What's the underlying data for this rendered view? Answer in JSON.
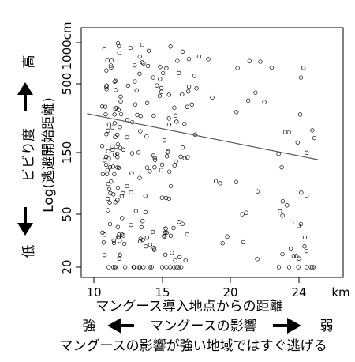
{
  "chart_data": {
    "type": "scatter",
    "x_ticks": [
      "10",
      "15",
      "20",
      "24"
    ],
    "x_unit": "km",
    "y_ticks": [
      "20",
      "50",
      "150",
      "500",
      "1000cm"
    ],
    "xlabel": "マングース導入地点からの距離",
    "ylabel": "Log(逃避開始距離)",
    "y_side_label": "ビビり度",
    "y_high": "高",
    "y_low": "低",
    "x_left_label": "強",
    "x_middle_label": "マングースの影響",
    "x_right_label": "弱",
    "caption": "マングースの影響が強い地域ではすぐ逃げる",
    "xlim": [
      9.2,
      26.5
    ],
    "ylim_log": [
      18,
      1100
    ],
    "trend_line": {
      "x": [
        9.5,
        26.4
      ],
      "y": [
        290,
        130
      ]
    },
    "clusters": [
      {
        "x": [
          10.6,
          12.0
        ],
        "n": 85
      },
      {
        "x": [
          12.0,
          17.0
        ],
        "n": 130
      },
      {
        "x": [
          17.0,
          23.5
        ],
        "n": 25
      },
      {
        "x": [
          23.5,
          26.3
        ],
        "n": 35
      }
    ]
  }
}
